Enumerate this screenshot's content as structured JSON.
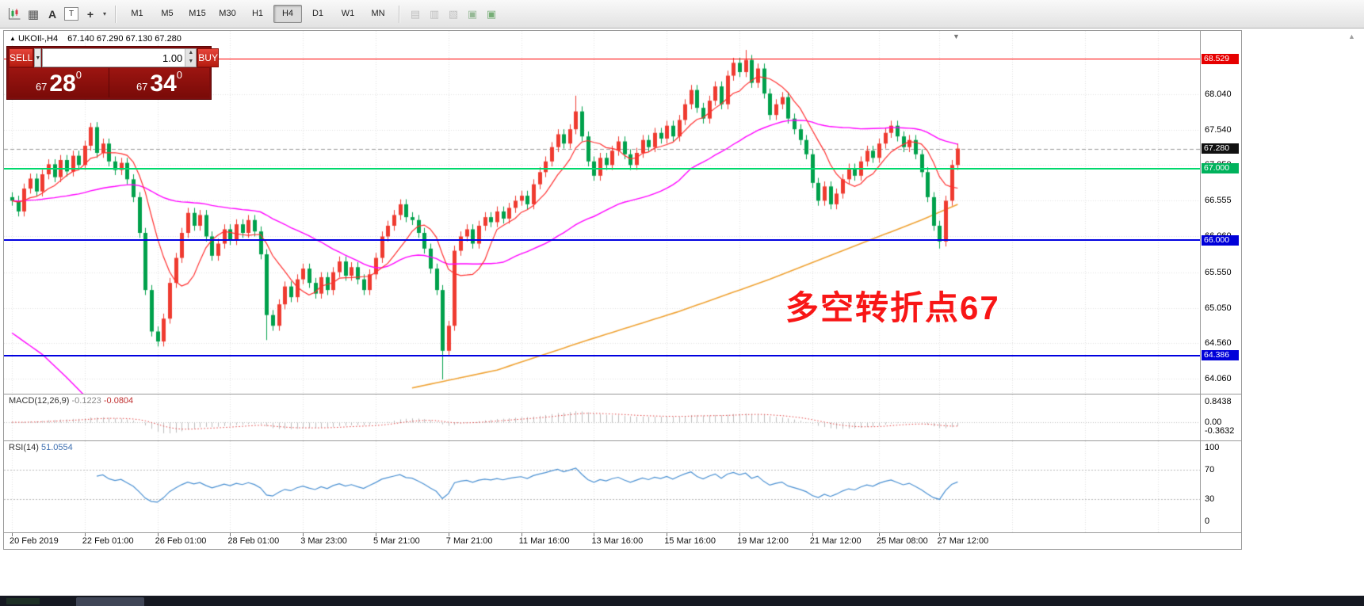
{
  "toolbar": {
    "icons": [
      {
        "name": "chart-type-icon",
        "glyph": ""
      },
      {
        "name": "grid-icon",
        "glyph": "▦"
      },
      {
        "name": "text-label-icon",
        "glyph": "A"
      },
      {
        "name": "textbox-icon",
        "glyph": "T"
      },
      {
        "name": "crosshair-icon",
        "glyph": "+"
      }
    ],
    "dropdown_glyph": "▾",
    "timeframes": [
      {
        "label": "M1"
      },
      {
        "label": "M5"
      },
      {
        "label": "M15"
      },
      {
        "label": "M30"
      },
      {
        "label": "H1"
      },
      {
        "label": "H4",
        "active": true
      },
      {
        "label": "D1"
      },
      {
        "label": "W1"
      },
      {
        "label": "MN"
      }
    ],
    "extra_icons": [
      {
        "name": "indicator-list-icon",
        "glyph": "▤",
        "color": "#b0b0b0"
      },
      {
        "name": "template-icon",
        "glyph": "▥",
        "color": "#b0b0b0"
      },
      {
        "name": "objects-icon",
        "glyph": "▧",
        "color": "#b0b0b0"
      },
      {
        "name": "new-order-icon",
        "glyph": "▣",
        "color": "#79a879"
      },
      {
        "name": "autotrading-icon",
        "glyph": "▣",
        "color": "#4f9a4f"
      }
    ]
  },
  "ui": {
    "scroll_arrow_glyph": "▲"
  },
  "chart": {
    "symbol_header": {
      "collapse_marker": "▲",
      "symbol": "UKOIl-,H4",
      "ohlc": "67.140 67.290 67.130 67.280"
    },
    "shift_marker": "▼",
    "trade_panel": {
      "sell_label": "SELL",
      "buy_label": "BUY",
      "volume": "1.00",
      "sell_price_small": "67",
      "sell_price_big": "28",
      "sell_price_pip": "0",
      "buy_price_small": "67",
      "buy_price_big": "34",
      "buy_price_pip": "0"
    },
    "annotation": {
      "text": "多空转折点67",
      "color": "#f81616"
    },
    "hlines": [
      {
        "name": "resistance-line-68529",
        "price": 68.529,
        "color": "#ff0000",
        "width": 1
      },
      {
        "name": "pivot-line-67000",
        "price": 67.0,
        "color": "#00d96d",
        "width": 2
      },
      {
        "name": "support-line-66000",
        "price": 66.0,
        "color": "#0000e0",
        "width": 2
      },
      {
        "name": "support-line-64386",
        "price": 64.386,
        "color": "#0000e0",
        "width": 2
      }
    ],
    "price_axis": {
      "labels": [
        {
          "text": "68.040",
          "price": 68.04
        },
        {
          "text": "67.540",
          "price": 67.54
        },
        {
          "text": "67.050",
          "price": 67.05
        },
        {
          "text": "66.555",
          "price": 66.555
        },
        {
          "text": "66.060",
          "price": 66.06
        },
        {
          "text": "65.550",
          "price": 65.55
        },
        {
          "text": "65.050",
          "price": 65.05
        },
        {
          "text": "64.560",
          "price": 64.56
        },
        {
          "text": "64.060",
          "price": 64.06
        }
      ],
      "badges": [
        {
          "name": "resistance-price-badge",
          "text": "68.529",
          "price": 68.529,
          "color": "#e60000"
        },
        {
          "name": "current-price-badge",
          "text": "67.280",
          "price": 67.28,
          "color": "#111111"
        },
        {
          "name": "pivot-price-badge",
          "text": "67.000",
          "price": 67.0,
          "color": "#00b25c"
        },
        {
          "name": "support1-price-badge",
          "text": "66.000",
          "price": 66.0,
          "color": "#0000d9"
        },
        {
          "name": "support2-price-badge",
          "text": "64.386",
          "price": 64.386,
          "color": "#0000d9"
        }
      ]
    },
    "macd_axis": [
      {
        "text": "0.8438",
        "value": 0.8438
      },
      {
        "text": "0.00",
        "value": 0
      },
      {
        "text": "-0.3632",
        "value": -0.3632
      }
    ],
    "rsi_axis": [
      {
        "text": "100",
        "value": 100
      },
      {
        "text": "70",
        "value": 70
      },
      {
        "text": "30",
        "value": 30
      },
      {
        "text": "0",
        "value": 0
      }
    ],
    "indicators": {
      "macd": {
        "name": "MACD(12,26,9)",
        "value1": "-0.1223",
        "value2": "-0.0804"
      },
      "rsi": {
        "name": "RSI(14)",
        "value": "51.0554"
      }
    },
    "time_axis": {
      "labels": [
        {
          "text": "20 Feb 2019",
          "bar": 0
        },
        {
          "text": "22 Feb 01:00",
          "bar": 12
        },
        {
          "text": "26 Feb 01:00",
          "bar": 24
        },
        {
          "text": "28 Feb 01:00",
          "bar": 36
        },
        {
          "text": "3 Mar 23:00",
          "bar": 48
        },
        {
          "text": "5 Mar 21:00",
          "bar": 60
        },
        {
          "text": "7 Mar 21:00",
          "bar": 72
        },
        {
          "text": "11 Mar 16:00",
          "bar": 84
        },
        {
          "text": "13 Mar 16:00",
          "bar": 96
        },
        {
          "text": "15 Mar 16:00",
          "bar": 108
        },
        {
          "text": "19 Mar 12:00",
          "bar": 120
        },
        {
          "text": "21 Mar 12:00",
          "bar": 132
        },
        {
          "text": "25 Mar 08:00",
          "bar": 143
        },
        {
          "text": "27 Mar 12:00",
          "bar": 153
        }
      ]
    }
  },
  "chart_data": {
    "type": "candlestick",
    "symbol": "UKOIl-",
    "timeframe": "H4",
    "current_price": 67.28,
    "ohlc_display": {
      "open": 67.14,
      "high": 67.29,
      "low": 67.13,
      "close": 67.28
    },
    "key_levels": [
      68.529,
      67.0,
      66.0,
      64.386
    ],
    "price_range": [
      64.06,
      68.529
    ],
    "colors": {
      "up": "#ef3b30",
      "down": "#00a14b",
      "ma_fast": "#ff2f2f",
      "ma_medium": "#ff00ff",
      "ma_slow": "#efa233",
      "macd_hist": "#bdbdbd",
      "macd_signal": "#e04040",
      "rsi_line": "#4a90d2",
      "grid": "#e1e1e1"
    },
    "candles": {
      "first_open": 66.6,
      "closes": [
        66.55,
        66.4,
        66.72,
        66.86,
        66.68,
        66.92,
        67.06,
        66.88,
        67.12,
        66.96,
        67.18,
        67.05,
        67.32,
        67.58,
        67.22,
        67.35,
        67.1,
        66.98,
        67.08,
        66.85,
        66.6,
        66.1,
        65.3,
        64.72,
        64.58,
        64.9,
        65.4,
        65.75,
        66.1,
        66.38,
        66.2,
        66.35,
        66.05,
        65.78,
        65.95,
        66.15,
        66.0,
        66.22,
        66.1,
        66.28,
        66.12,
        65.8,
        64.95,
        64.8,
        65.1,
        65.35,
        65.2,
        65.45,
        65.6,
        65.4,
        65.25,
        65.48,
        65.3,
        65.55,
        65.7,
        65.5,
        65.62,
        65.45,
        65.3,
        65.52,
        65.75,
        66.05,
        66.2,
        66.35,
        66.5,
        66.32,
        66.28,
        66.1,
        65.88,
        65.6,
        65.3,
        64.45,
        64.8,
        65.85,
        66.05,
        66.15,
        65.95,
        66.2,
        66.32,
        66.25,
        66.4,
        66.3,
        66.45,
        66.55,
        66.62,
        66.5,
        66.78,
        66.95,
        67.1,
        67.3,
        67.48,
        67.35,
        67.55,
        67.8,
        67.45,
        67.1,
        66.9,
        67.15,
        67.05,
        67.25,
        67.38,
        67.2,
        67.05,
        67.22,
        67.4,
        67.3,
        67.5,
        67.42,
        67.6,
        67.45,
        67.68,
        67.9,
        68.1,
        67.85,
        67.7,
        67.95,
        68.15,
        67.9,
        68.3,
        68.48,
        68.35,
        68.52,
        68.2,
        68.4,
        68.05,
        67.75,
        67.9,
        68.0,
        67.7,
        67.55,
        67.4,
        67.2,
        66.8,
        66.55,
        66.75,
        66.5,
        66.65,
        66.85,
        67.0,
        66.9,
        67.1,
        67.25,
        67.15,
        67.35,
        67.5,
        67.6,
        67.45,
        67.3,
        67.4,
        67.2,
        66.95,
        66.6,
        66.2,
        65.98,
        66.55,
        67.05,
        67.28
      ],
      "wick_overrides": {
        "13": {
          "high": 67.64
        },
        "42": {
          "low": 64.6
        },
        "71": {
          "low": 64.05
        },
        "93": {
          "high": 68.02
        },
        "121": {
          "high": 68.66
        },
        "153": {
          "low": 65.88
        }
      }
    },
    "overlays": {
      "ma_fast_period": 8,
      "ma_medium_period": 40,
      "ma_slow_anchors": [
        [
          66,
          63.93
        ],
        [
          80,
          64.18
        ],
        [
          95,
          64.6
        ],
        [
          110,
          65.0
        ],
        [
          125,
          65.45
        ],
        [
          140,
          65.95
        ],
        [
          150,
          66.28
        ],
        [
          156,
          66.5
        ]
      ],
      "ma_left_anchors": [
        [
          0,
          64.7
        ],
        [
          5,
          64.4
        ],
        [
          9,
          64.08
        ],
        [
          12,
          63.82
        ]
      ]
    },
    "indicators": {
      "macd": {
        "fast": 12,
        "slow": 26,
        "signal": 9,
        "last_values": [
          -0.1223,
          -0.0804
        ],
        "scale_max": 0.8438,
        "scale_min": -0.3632
      },
      "rsi": {
        "period": 14,
        "last_value": 51.0554,
        "levels": [
          70,
          30
        ],
        "range": [
          0,
          100
        ]
      }
    }
  },
  "bottom_bar": {}
}
